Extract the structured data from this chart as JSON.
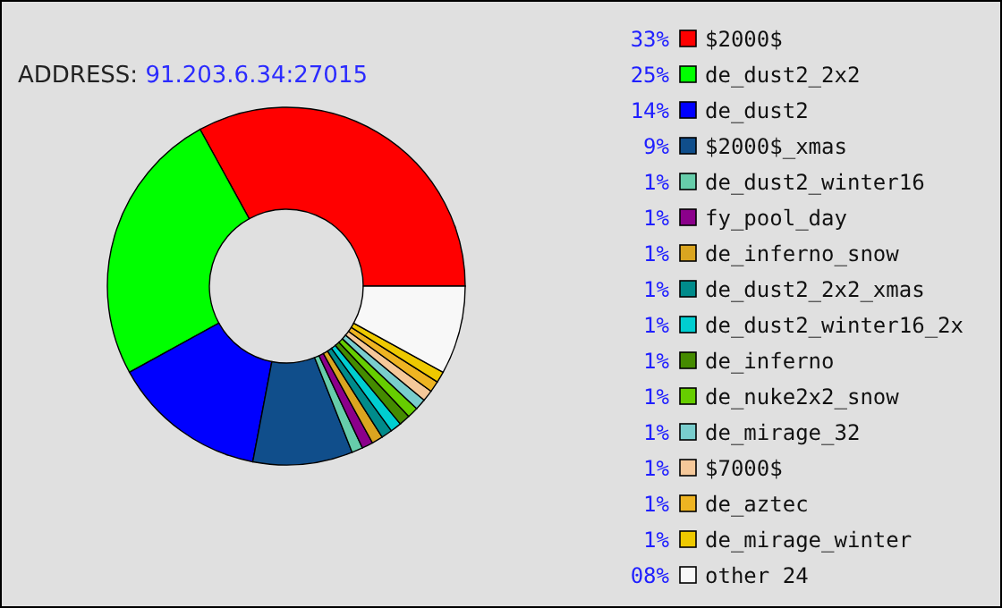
{
  "chart_data": {
    "type": "donut",
    "subtitle": "ADDRESS: 91.203.6.34:27015",
    "categories": [
      "$2000$",
      "de_dust2_2x2",
      "de_dust2",
      "$2000$_xmas",
      "de_dust2_winter16",
      "fy_pool_day",
      "de_inferno_snow",
      "de_dust2_2x2_xmas",
      "de_dust2_winter16_2x",
      "de_inferno",
      "de_nuke2x2_snow",
      "de_mirage_32",
      "$7000$",
      "de_aztec",
      "de_mirage_winter",
      "other 24"
    ],
    "values": [
      33,
      25,
      14,
      9,
      1,
      1,
      1,
      1,
      1,
      1,
      1,
      1,
      1,
      1,
      1,
      8
    ],
    "value_labels": [
      "33%",
      "25%",
      "14%",
      "9%",
      "1%",
      "1%",
      "1%",
      "1%",
      "1%",
      "1%",
      "1%",
      "1%",
      "1%",
      "1%",
      "1%",
      "08%"
    ],
    "colors": [
      "#ff0000",
      "#00ff00",
      "#0000ff",
      "#104e8b",
      "#66cdaa",
      "#8b008b",
      "#daa520",
      "#008b8b",
      "#00ced1",
      "#458b00",
      "#66cd00",
      "#79cdcd",
      "#f5c89a",
      "#eeb422",
      "#eec900",
      "#f8f8f8"
    ],
    "legend": "right"
  }
}
